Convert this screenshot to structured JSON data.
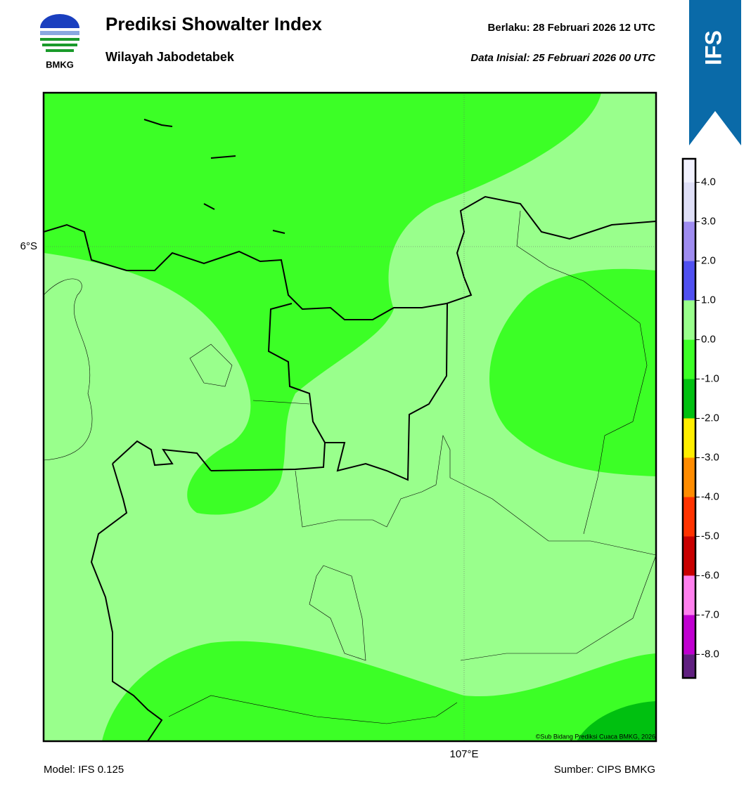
{
  "header": {
    "title": "Prediksi Showalter Index",
    "subtitle": "Wilayah Jabodetabek",
    "valid": "Berlaku:  28 Februari 2026 12 UTC",
    "init": "Data Inisial:  25 Februari 2026 00 UTC",
    "logo": "BMKG",
    "model_badge": "IFS"
  },
  "map": {
    "lat_label": "6°S",
    "lon_label": "107°E",
    "credit": "©Sub Bidang Prediksi Cuaca BMKG, 2026"
  },
  "colorbar": {
    "range": [
      -8.6,
      4.6
    ],
    "ticks": [
      {
        "value": 4,
        "label": "4.0"
      },
      {
        "value": 3,
        "label": "3.0"
      },
      {
        "value": 2,
        "label": "2.0"
      },
      {
        "value": 1,
        "label": "1.0"
      },
      {
        "value": 0,
        "label": "0.0"
      },
      {
        "value": -1,
        "label": "-1.0"
      },
      {
        "value": -2,
        "label": "-2.0"
      },
      {
        "value": -3,
        "label": "-3.0"
      },
      {
        "value": -4,
        "label": "-4.0"
      },
      {
        "value": -5,
        "label": "-5.0"
      },
      {
        "value": -6,
        "label": "-6.0"
      },
      {
        "value": -7,
        "label": "-7.0"
      },
      {
        "value": -8,
        "label": "-8.0"
      }
    ],
    "colors": [
      "#f2f2ff",
      "#e0e0f8",
      "#9f8cf0",
      "#5050f0",
      "#99ff8c",
      "#3cff26",
      "#00c010",
      "#ffee00",
      "#ff8c00",
      "#ff3300",
      "#c80000",
      "#ff80ee",
      "#c000d0",
      "#602080"
    ]
  },
  "footer": {
    "model": "Model: IFS 0.125",
    "source": "Sumber: CIPS BMKG"
  }
}
